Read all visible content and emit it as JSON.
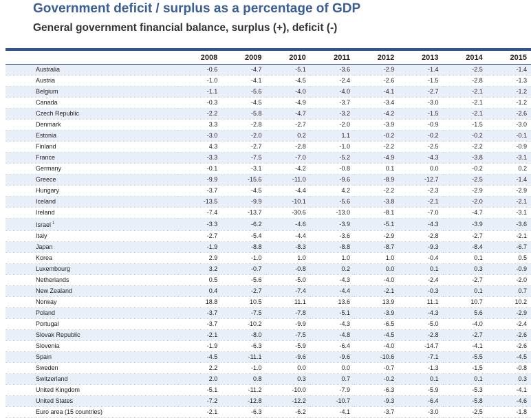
{
  "header": {
    "title": "Government deficit / surplus as a percentage of GDP",
    "subtitle": "General government financial balance, surplus (+), deficit (-)"
  },
  "table": {
    "years": [
      "2008",
      "2009",
      "2010",
      "2011",
      "2012",
      "2013",
      "2014",
      "2015"
    ],
    "rows": [
      {
        "country": "Australia",
        "values": [
          "-0.6",
          "-4.7",
          "-5.1",
          "-3.6",
          "-2.9",
          "-1.4",
          "-2.5",
          "-1.4"
        ]
      },
      {
        "country": "Austria",
        "values": [
          "-1.0",
          "-4.1",
          "-4.5",
          "-2.4",
          "-2.6",
          "-1.5",
          "-2.8",
          "-1.3"
        ]
      },
      {
        "country": "Belgium",
        "values": [
          "-1.1",
          "-5.6",
          "-4.0",
          "-4.0",
          "-4.1",
          "-2.7",
          "-2.1",
          "-1.2"
        ]
      },
      {
        "country": "Canada",
        "values": [
          "-0.3",
          "-4.5",
          "-4.9",
          "-3.7",
          "-3.4",
          "-3.0",
          "-2.1",
          "-1.2"
        ]
      },
      {
        "country": "Czech Republic",
        "values": [
          "-2.2",
          "-5.8",
          "-4.7",
          "-3.2",
          "-4.2",
          "-1.5",
          "-2.1",
          "-2.6"
        ]
      },
      {
        "country": "Denmark",
        "values": [
          "3.3",
          "-2.8",
          "-2.7",
          "-2.0",
          "-3.9",
          "-0.9",
          "-1.5",
          "-3.0"
        ]
      },
      {
        "country": "Estonia",
        "values": [
          "-3.0",
          "-2.0",
          "0.2",
          "1.1",
          "-0.2",
          "-0.2",
          "-0.2",
          "-0.1"
        ]
      },
      {
        "country": "Finland",
        "values": [
          "4.3",
          "-2.7",
          "-2.8",
          "-1.0",
          "-2.2",
          "-2.5",
          "-2.2",
          "-0.9"
        ]
      },
      {
        "country": "France",
        "values": [
          "-3.3",
          "-7.5",
          "-7.0",
          "-5.2",
          "-4.9",
          "-4.3",
          "-3.8",
          "-3.1"
        ]
      },
      {
        "country": "Germany",
        "values": [
          "-0.1",
          "-3.1",
          "-4.2",
          "-0.8",
          "0.1",
          "0.0",
          "-0.2",
          "0.2"
        ]
      },
      {
        "country": "Greece",
        "values": [
          "-9.9",
          "-15.6",
          "-11.0",
          "-9.6",
          "-8.9",
          "-12.7",
          "-2.5",
          "-1.4"
        ]
      },
      {
        "country": "Hungary",
        "values": [
          "-3.7",
          "-4.5",
          "-4.4",
          "4.2",
          "-2.2",
          "-2.3",
          "-2.9",
          "-2.9"
        ]
      },
      {
        "country": "Iceland",
        "values": [
          "-13.5",
          "-9.9",
          "-10.1",
          "-5.6",
          "-3.8",
          "-2.1",
          "-2.0",
          "-2.1"
        ]
      },
      {
        "country": "Ireland",
        "values": [
          "-7.4",
          "-13.7",
          "-30.6",
          "-13.0",
          "-8.1",
          "-7.0",
          "-4.7",
          "-3.1"
        ]
      },
      {
        "country": "Israel",
        "footnote": "1",
        "values": [
          "-3.3",
          "-6.2",
          "-4.6",
          "-3.9",
          "-5.1",
          "-4.3",
          "-3.9",
          "-3.6"
        ]
      },
      {
        "country": "Italy",
        "values": [
          "-2.7",
          "-5.4",
          "-4.4",
          "-3.6",
          "-2.9",
          "-2.8",
          "-2.7",
          "-2.1"
        ]
      },
      {
        "country": "Japan",
        "values": [
          "-1.9",
          "-8.8",
          "-8.3",
          "-8.8",
          "-8.7",
          "-9.3",
          "-8.4",
          "-6.7"
        ]
      },
      {
        "country": "Korea",
        "values": [
          "2.9",
          "-1.0",
          "1.0",
          "1.0",
          "1.0",
          "-0.4",
          "0.1",
          "0.5"
        ]
      },
      {
        "country": "Luxembourg",
        "values": [
          "3.2",
          "-0.7",
          "-0.8",
          "0.2",
          "0.0",
          "0.1",
          "0.3",
          "-0.9"
        ]
      },
      {
        "country": "Netherlands",
        "values": [
          "0.5",
          "-5.6",
          "-5.0",
          "-4.3",
          "-4.0",
          "-2.4",
          "-2.7",
          "-2.0"
        ]
      },
      {
        "country": "New Zealand",
        "values": [
          "0.4",
          "-2.7",
          "-7.4",
          "-4.4",
          "-2.1",
          "-0.3",
          "0.1",
          "0.7"
        ]
      },
      {
        "country": "Norway",
        "values": [
          "18.8",
          "10.5",
          "11.1",
          "13.6",
          "13.9",
          "11.1",
          "10.7",
          "10.2"
        ]
      },
      {
        "country": "Poland",
        "values": [
          "-3.7",
          "-7.5",
          "-7.8",
          "-5.1",
          "-3.9",
          "-4.3",
          "5.6",
          "-2.9"
        ]
      },
      {
        "country": "Portugal",
        "values": [
          "-3.7",
          "-10.2",
          "-9.9",
          "-4.3",
          "-6.5",
          "-5.0",
          "-4.0",
          "-2.4"
        ]
      },
      {
        "country": "Slovak Republic",
        "values": [
          "-2.1",
          "-8.0",
          "-7.5",
          "-4.8",
          "-4.5",
          "-2.8",
          "-2.7",
          "-2.6"
        ]
      },
      {
        "country": "Slovenia",
        "values": [
          "-1.9",
          "-6.3",
          "-5.9",
          "-6.4",
          "-4.0",
          "-14.7",
          "-4.1",
          "-2.6"
        ]
      },
      {
        "country": "Spain",
        "values": [
          "-4.5",
          "-11.1",
          "-9.6",
          "-9.6",
          "-10.6",
          "-7.1",
          "-5.5",
          "-4.5"
        ]
      },
      {
        "country": "Sweden",
        "values": [
          "2.2",
          "-1.0",
          "0.0",
          "0.0",
          "-0.7",
          "-1.3",
          "-1.5",
          "-0.8"
        ]
      },
      {
        "country": "Switzerland",
        "values": [
          "2.0",
          "0.8",
          "0.3",
          "0.7",
          "-0.2",
          "0.1",
          "0.1",
          "0.3"
        ]
      },
      {
        "country": "United Kingdom",
        "values": [
          "-5.1",
          "-11.2",
          "-10.0",
          "-7.9",
          "-6.3",
          "-5.9",
          "-5.3",
          "-4.1"
        ]
      },
      {
        "country": "United States",
        "values": [
          "-7.2",
          "-12.8",
          "-12.2",
          "-10.7",
          "-9.3",
          "-6.4",
          "-5.8",
          "-4.6"
        ]
      },
      {
        "country": "Euro area (15 countries)",
        "values": [
          "-2.1",
          "-6.3",
          "-6.2",
          "-4.1",
          "-3.7",
          "-3.0",
          "-2.5",
          "-1.8"
        ]
      }
    ]
  }
}
